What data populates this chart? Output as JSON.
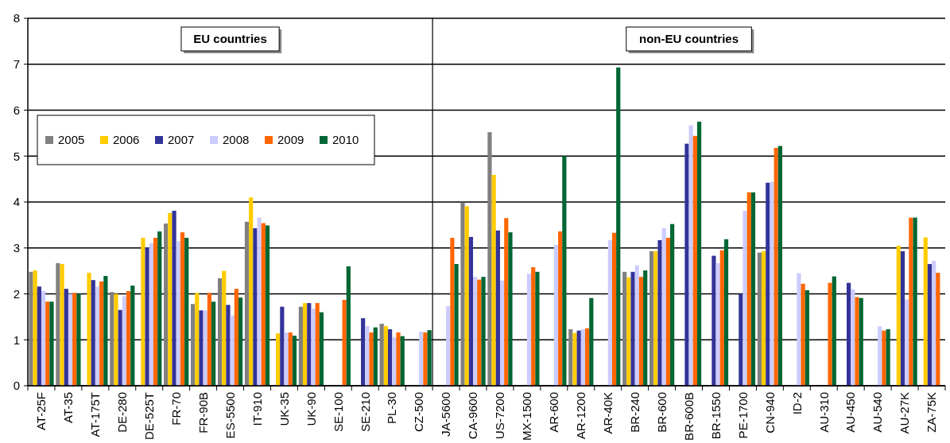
{
  "chart_data": {
    "type": "bar",
    "categories": [
      "AT-25F",
      "AT-35",
      "AT-175T",
      "DE-280",
      "DE-525T",
      "FR-70",
      "FR-90B",
      "ES-5500",
      "IT-910",
      "UK-35",
      "UK-90",
      "SE-100",
      "SE-210",
      "PL-30",
      "CZ-500",
      "JA-5600",
      "CA-9600",
      "US-7200",
      "MX-1500",
      "AR-600",
      "AR-1200",
      "AR-40K",
      "BR-240",
      "BR-600",
      "BR-600B",
      "BR-1550",
      "PE-1700",
      "CN-940",
      "ID-2",
      "AU-310",
      "AU-450",
      "AU-540",
      "AU-27K",
      "ZA-75K"
    ],
    "series": [
      {
        "name": "2005",
        "color": "#808080",
        "values": [
          2.48,
          2.67,
          null,
          2.04,
          null,
          3.53,
          1.78,
          2.34,
          3.57,
          null,
          1.72,
          null,
          null,
          1.35,
          null,
          null,
          3.99,
          5.52,
          null,
          null,
          1.23,
          null,
          2.48,
          2.93,
          null,
          null,
          null,
          2.9,
          null,
          null,
          null,
          null,
          null,
          null
        ]
      },
      {
        "name": "2006",
        "color": "#ffcc00",
        "values": [
          2.51,
          2.65,
          2.46,
          2.0,
          3.22,
          3.76,
          2.02,
          2.5,
          4.1,
          1.14,
          1.8,
          null,
          null,
          1.3,
          null,
          null,
          3.91,
          4.59,
          null,
          null,
          1.15,
          null,
          2.36,
          2.93,
          null,
          null,
          null,
          2.93,
          null,
          null,
          null,
          null,
          3.05,
          3.23
        ]
      },
      {
        "name": "2007",
        "color": "#333399",
        "values": [
          2.16,
          2.11,
          2.3,
          1.65,
          3.01,
          3.81,
          1.64,
          1.76,
          3.43,
          1.72,
          1.8,
          null,
          1.47,
          1.23,
          null,
          null,
          3.24,
          3.38,
          null,
          null,
          1.2,
          null,
          2.48,
          3.17,
          5.27,
          2.83,
          2.0,
          4.42,
          null,
          null,
          2.24,
          null,
          2.93,
          2.65
        ]
      },
      {
        "name": "2008",
        "color": "#ccccff",
        "values": [
          2.06,
          2.0,
          2.16,
          1.95,
          3.1,
          3.15,
          1.64,
          1.53,
          3.66,
          1.16,
          1.68,
          null,
          1.3,
          1.06,
          1.18,
          1.73,
          2.37,
          2.29,
          2.44,
          3.07,
          1.23,
          3.17,
          2.62,
          3.43,
          5.67,
          2.67,
          3.81,
          4.44,
          2.45,
          null,
          2.1,
          1.29,
          1.88,
          2.72
        ]
      },
      {
        "name": "2009",
        "color": "#ff6600",
        "values": [
          1.83,
          2.02,
          2.27,
          2.06,
          3.22,
          3.34,
          2.02,
          2.11,
          3.54,
          1.16,
          1.8,
          1.87,
          1.16,
          1.16,
          1.16,
          3.22,
          2.31,
          3.65,
          2.58,
          3.36,
          1.25,
          3.33,
          2.37,
          3.22,
          5.44,
          2.95,
          4.21,
          5.18,
          2.22,
          2.24,
          1.93,
          1.2,
          3.66,
          2.46
        ]
      },
      {
        "name": "2010",
        "color": "#006633",
        "values": [
          1.83,
          2.0,
          2.39,
          2.18,
          3.36,
          3.22,
          1.83,
          1.92,
          3.49,
          1.09,
          1.6,
          2.6,
          1.27,
          1.08,
          1.21,
          2.65,
          2.37,
          3.34,
          2.48,
          5.0,
          1.91,
          6.93,
          2.51,
          3.52,
          5.75,
          3.19,
          4.21,
          5.22,
          2.08,
          2.38,
          1.91,
          1.23,
          3.66,
          null
        ]
      }
    ],
    "ref_lines": [
      {
        "axis": "x",
        "value": "JA-5600",
        "color": "#000000"
      }
    ],
    "ylim": [
      0,
      8
    ],
    "yticks": [
      0,
      1,
      2,
      3,
      4,
      5,
      6,
      7,
      8
    ],
    "grid": "y",
    "legend": "top left",
    "annotations": [
      "EU countries",
      "non-EU countries"
    ]
  }
}
